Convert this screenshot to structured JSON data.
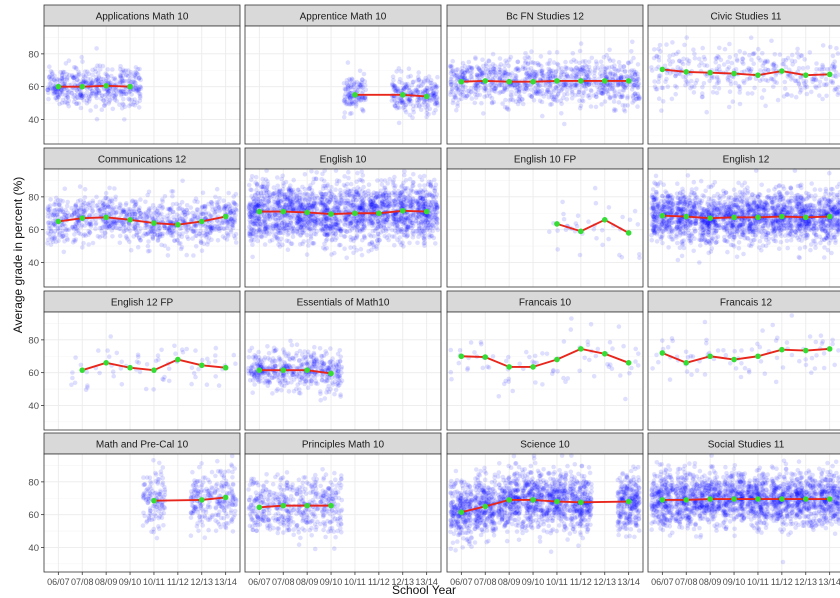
{
  "figure": {
    "xlabel": "School Year",
    "ylabel": "Average grade in percent (%)"
  },
  "style": {
    "point_color": "#0000ff",
    "trend_color": "#e8261c",
    "mean_color": "#33dd33",
    "strip_bg": "#d9d9d9",
    "panel_border": "#333333",
    "grid_major": "#ebebeb",
    "grid_minor": "#f5f5f5"
  },
  "chart_data": {
    "type": "scatter",
    "facet_layout": "4x4 grid, free x shared scales",
    "x_categories": [
      "06/07",
      "07/08",
      "08/09",
      "09/10",
      "10/11",
      "11/12",
      "12/13",
      "13/14"
    ],
    "x_tick_labels": [
      "06/07",
      "07/08",
      "08/09",
      "09/10",
      "10/11",
      "11/12",
      "12/13",
      "13/14"
    ],
    "ylim": [
      25,
      97
    ],
    "y_ticks": [
      40,
      60,
      80
    ],
    "legend": "none",
    "grid": true,
    "panels": [
      {
        "title": "Applications Math 10",
        "spread": 6,
        "density": "medium",
        "means": [
          60,
          60,
          60.5,
          60,
          null,
          null,
          null,
          null
        ]
      },
      {
        "title": "Apprentice Math 10",
        "spread": 6,
        "density": "medium",
        "means": [
          null,
          null,
          null,
          null,
          55,
          null,
          55,
          54
        ]
      },
      {
        "title": "Bc FN Studies 12",
        "spread": 7,
        "density": "medium",
        "means": [
          63,
          63.5,
          63,
          63,
          63.5,
          63.5,
          63.5,
          63.5
        ]
      },
      {
        "title": "Civic Studies 11",
        "spread": 8,
        "density": "light",
        "means": [
          70.5,
          69,
          68.5,
          68,
          67,
          69.5,
          67,
          67.5
        ]
      },
      {
        "title": "Communications 12",
        "spread": 7,
        "density": "medium",
        "means": [
          65,
          67,
          67.5,
          66,
          64,
          63,
          65,
          68
        ]
      },
      {
        "title": "English 10",
        "spread": 9,
        "density": "heavy",
        "means": [
          71,
          71,
          70.5,
          69.5,
          70,
          70,
          71.5,
          71
        ]
      },
      {
        "title": "English 10 FP",
        "spread": 10,
        "density": "sparse",
        "means": [
          null,
          null,
          null,
          null,
          63.5,
          59,
          66,
          58
        ]
      },
      {
        "title": "English 12",
        "spread": 8,
        "density": "heavy",
        "means": [
          68.5,
          68,
          67,
          67.5,
          67.5,
          68,
          67.5,
          68
        ]
      },
      {
        "title": "English 12 FP",
        "spread": 8,
        "density": "sparse",
        "means": [
          null,
          61.5,
          66,
          63,
          61.5,
          68,
          64.5,
          63
        ]
      },
      {
        "title": "Essentials of Math10",
        "spread": 6,
        "density": "medium",
        "means": [
          61.5,
          61.5,
          61.5,
          59.5,
          null,
          null,
          null,
          null
        ]
      },
      {
        "title": "Francais 10",
        "spread": 8,
        "density": "sparse",
        "means": [
          70,
          69.5,
          63.5,
          63.5,
          68,
          74.5,
          71.5,
          66
        ]
      },
      {
        "title": "Francais 12",
        "spread": 8,
        "density": "sparse",
        "means": [
          72,
          66,
          70,
          68,
          70,
          74,
          73.5,
          74.5
        ]
      },
      {
        "title": "Math and Pre-Cal 10",
        "spread": 9,
        "density": "medium",
        "means": [
          null,
          null,
          null,
          null,
          68.5,
          null,
          69,
          70.5
        ]
      },
      {
        "title": "Principles Math 10",
        "spread": 9,
        "density": "medium",
        "means": [
          64.5,
          65.5,
          65.5,
          65.5,
          null,
          null,
          null,
          null
        ]
      },
      {
        "title": "Science 10",
        "spread": 9,
        "density": "heavy",
        "means": [
          61.5,
          65,
          69,
          69,
          68,
          67.5,
          null,
          68
        ]
      },
      {
        "title": "Social Studies 11",
        "spread": 8,
        "density": "heavy",
        "means": [
          69,
          69,
          69.5,
          69.5,
          69.5,
          69.5,
          69.5,
          69.5
        ]
      }
    ]
  }
}
